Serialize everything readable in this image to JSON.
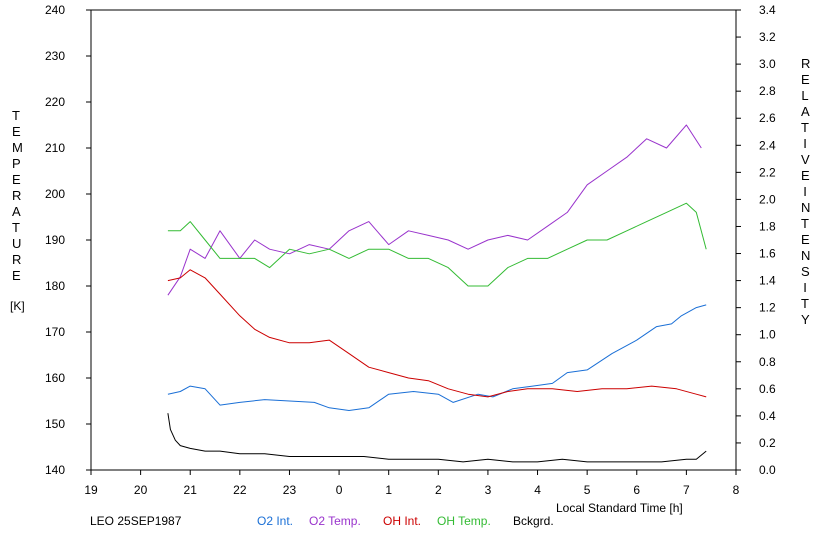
{
  "chart_data": {
    "type": "line",
    "title": "",
    "xlabel": "Local Standard Time [h]",
    "ylabel_left": "TEMPERATURE",
    "ylabel_left_unit": "[K]",
    "ylabel_right": "RELATIVE INTENSITY",
    "x_ticks": [
      "19",
      "20",
      "21",
      "22",
      "23",
      "0",
      "1",
      "2",
      "3",
      "4",
      "5",
      "6",
      "7",
      "8"
    ],
    "xlim": [
      19,
      32
    ],
    "y_left_ticks": [
      "140",
      "150",
      "160",
      "170",
      "180",
      "190",
      "200",
      "210",
      "220",
      "230",
      "240"
    ],
    "ylim_left": [
      140,
      240
    ],
    "y_right_ticks": [
      "0.0",
      "0.2",
      "0.4",
      "0.6",
      "0.8",
      "1.0",
      "1.2",
      "1.4",
      "1.6",
      "1.8",
      "2.0",
      "2.2",
      "2.4",
      "2.6",
      "2.8",
      "3.0",
      "3.2",
      "3.4"
    ],
    "ylim_right": [
      0,
      3.4
    ],
    "grid": false,
    "legend_location": "bottom",
    "footer_label": "LEO 25SEP1987",
    "series": [
      {
        "name": "O2 Int.",
        "color": "#1a6fd6",
        "axis": "right",
        "x": [
          20.55,
          20.8,
          21.0,
          21.3,
          21.6,
          22.0,
          22.5,
          23.0,
          23.5,
          23.8,
          24.2,
          24.6,
          25.0,
          25.5,
          26.0,
          26.3,
          26.8,
          27.1,
          27.5,
          27.9,
          28.3,
          28.6,
          29.0,
          29.5,
          30.0,
          30.4,
          30.7,
          30.9,
          31.2,
          31.4
        ],
        "values": [
          0.56,
          0.58,
          0.62,
          0.6,
          0.48,
          0.5,
          0.52,
          0.51,
          0.5,
          0.46,
          0.44,
          0.46,
          0.56,
          0.58,
          0.56,
          0.5,
          0.56,
          0.54,
          0.6,
          0.62,
          0.64,
          0.72,
          0.74,
          0.86,
          0.96,
          1.06,
          1.08,
          1.14,
          1.2,
          1.22
        ]
      },
      {
        "name": "O2 Temp.",
        "color": "#9933cc",
        "axis": "left",
        "x": [
          20.55,
          20.8,
          21.0,
          21.3,
          21.6,
          22.0,
          22.3,
          22.6,
          23.0,
          23.4,
          23.8,
          24.2,
          24.6,
          25.0,
          25.4,
          25.8,
          26.2,
          26.6,
          27.0,
          27.4,
          27.8,
          28.2,
          28.6,
          29.0,
          29.4,
          29.8,
          30.2,
          30.6,
          31.0,
          31.3
        ],
        "values": [
          178,
          182,
          188,
          186,
          192,
          186,
          190,
          188,
          187,
          189,
          188,
          192,
          194,
          189,
          192,
          191,
          190,
          188,
          190,
          191,
          190,
          193,
          196,
          202,
          205,
          208,
          212,
          210,
          215,
          210
        ]
      },
      {
        "name": "OH Int.",
        "color": "#cc0000",
        "axis": "right",
        "x": [
          20.55,
          20.8,
          21.0,
          21.3,
          21.6,
          22.0,
          22.3,
          22.6,
          23.0,
          23.4,
          23.8,
          24.2,
          24.6,
          25.0,
          25.4,
          25.8,
          26.2,
          26.6,
          27.0,
          27.4,
          27.8,
          28.3,
          28.8,
          29.3,
          29.8,
          30.3,
          30.8,
          31.2,
          31.4
        ],
        "values": [
          1.4,
          1.42,
          1.48,
          1.42,
          1.3,
          1.14,
          1.04,
          0.98,
          0.94,
          0.94,
          0.96,
          0.86,
          0.76,
          0.72,
          0.68,
          0.66,
          0.6,
          0.56,
          0.54,
          0.58,
          0.6,
          0.6,
          0.58,
          0.6,
          0.6,
          0.62,
          0.6,
          0.56,
          0.54
        ]
      },
      {
        "name": "OH Temp.",
        "color": "#33bb33",
        "axis": "left",
        "x": [
          20.55,
          20.8,
          21.0,
          21.3,
          21.6,
          22.0,
          22.3,
          22.6,
          23.0,
          23.4,
          23.8,
          24.2,
          24.6,
          25.0,
          25.4,
          25.8,
          26.2,
          26.6,
          27.0,
          27.4,
          27.8,
          28.2,
          28.6,
          29.0,
          29.4,
          29.8,
          30.2,
          30.6,
          31.0,
          31.2,
          31.4
        ],
        "values": [
          192,
          192,
          194,
          190,
          186,
          186,
          186,
          184,
          188,
          187,
          188,
          186,
          188,
          188,
          186,
          186,
          184,
          180,
          180,
          184,
          186,
          186,
          188,
          190,
          190,
          192,
          194,
          196,
          198,
          196,
          188
        ]
      },
      {
        "name": "Bckgrd.",
        "color": "#000000",
        "axis": "right",
        "x": [
          20.55,
          20.6,
          20.7,
          20.8,
          21.0,
          21.3,
          21.6,
          22.0,
          22.5,
          23.0,
          23.5,
          24.0,
          24.5,
          25.0,
          25.5,
          26.0,
          26.5,
          27.0,
          27.5,
          28.0,
          28.5,
          29.0,
          29.5,
          30.0,
          30.5,
          31.0,
          31.2,
          31.4
        ],
        "values": [
          0.42,
          0.3,
          0.22,
          0.18,
          0.16,
          0.14,
          0.14,
          0.12,
          0.12,
          0.1,
          0.1,
          0.1,
          0.1,
          0.08,
          0.08,
          0.08,
          0.06,
          0.08,
          0.06,
          0.06,
          0.08,
          0.06,
          0.06,
          0.06,
          0.06,
          0.08,
          0.08,
          0.14
        ]
      }
    ]
  }
}
